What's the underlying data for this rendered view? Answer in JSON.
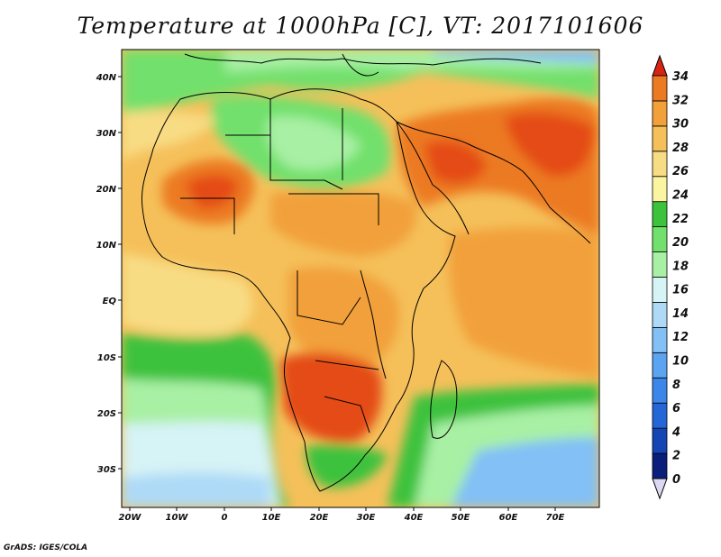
{
  "title": "Temperature at 1000hPa [C], VT: 2017101606",
  "credit": "GrADS: IGES/COLA",
  "map": {
    "lon_labels": [
      "20W",
      "10W",
      "0",
      "10E",
      "20E",
      "30E",
      "40E",
      "50E",
      "60E",
      "70E"
    ],
    "lat_labels": [
      "40N",
      "30N",
      "20N",
      "10N",
      "EQ",
      "10S",
      "20S",
      "30S"
    ]
  },
  "colorbar": {
    "labels": [
      "0",
      "2",
      "4",
      "6",
      "8",
      "10",
      "12",
      "14",
      "16",
      "18",
      "20",
      "22",
      "24",
      "26",
      "28",
      "30",
      "32",
      "34"
    ],
    "colors": [
      "#0a1f7a",
      "#1445b4",
      "#2566d6",
      "#3c86ea",
      "#5aa4f2",
      "#82c0f6",
      "#aedaf7",
      "#d6f3f6",
      "#a8f0a4",
      "#72e06c",
      "#3cc23c",
      "#fbf5a2",
      "#f8dc84",
      "#f5c05a",
      "#f2a03a",
      "#ec7a22",
      "#e44c18",
      "#d72414"
    ]
  }
}
